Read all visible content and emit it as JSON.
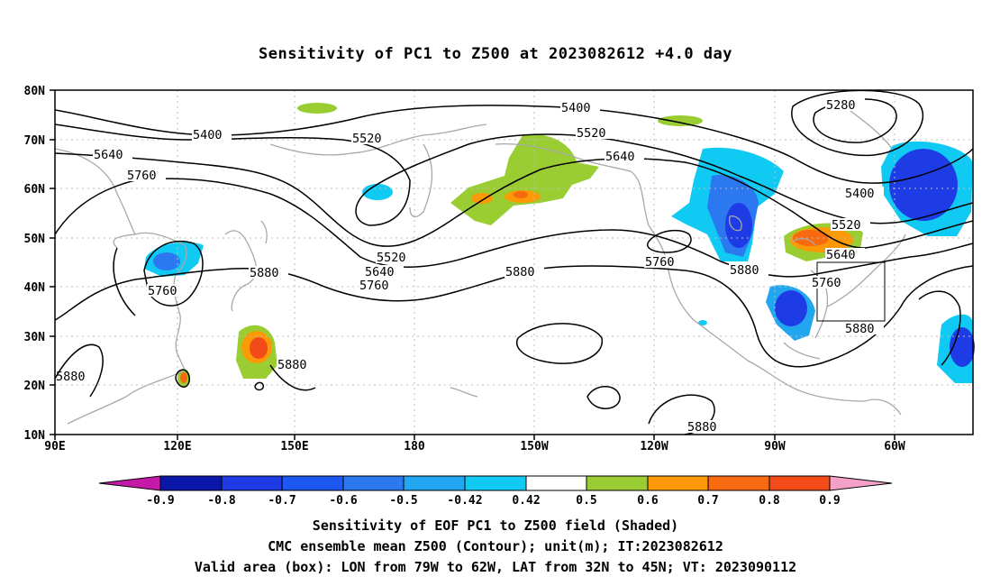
{
  "title": "Sensitivity of PC1 to Z500 at 2023082612 +4.0 day",
  "map": {
    "lon_labels": [
      "90E",
      "120E",
      "150E",
      "180",
      "150W",
      "120W",
      "90W",
      "60W"
    ],
    "lat_labels": [
      "80N",
      "70N",
      "60N",
      "50N",
      "40N",
      "30N",
      "20N",
      "10N"
    ],
    "contour_labels": [
      {
        "text": "5400"
      },
      {
        "text": "5520"
      },
      {
        "text": "5640"
      },
      {
        "text": "5760"
      },
      {
        "text": "5400"
      },
      {
        "text": "5520"
      },
      {
        "text": "5640"
      },
      {
        "text": "5520"
      },
      {
        "text": "5640"
      },
      {
        "text": "5760"
      },
      {
        "text": "5880"
      },
      {
        "text": "5760"
      },
      {
        "text": "5880"
      },
      {
        "text": "5880"
      },
      {
        "text": "5760"
      },
      {
        "text": "5880"
      },
      {
        "text": "5280"
      },
      {
        "text": "5400"
      },
      {
        "text": "5520"
      },
      {
        "text": "5640"
      },
      {
        "text": "5760"
      },
      {
        "text": "5880"
      },
      {
        "text": "5880"
      }
    ],
    "valid_box": {
      "lon_from": "79W",
      "lon_to": "62W",
      "lat_from": "32N",
      "lat_to": "45N"
    }
  },
  "colorbar": {
    "labels": [
      "-0.9",
      "-0.8",
      "-0.7",
      "-0.6",
      "-0.5",
      "-0.42",
      "0.42",
      "0.5",
      "0.6",
      "0.7",
      "0.8",
      "0.9"
    ],
    "colors": [
      "#c51aa8",
      "#0a16a8",
      "#1e3ce6",
      "#1d56f0",
      "#2c78f0",
      "#22a6f0",
      "#10caf4",
      "#ffffff",
      "#9acd32",
      "#fb9a06",
      "#f76a10",
      "#f24a18",
      "#f71808",
      "#f5a0c8"
    ]
  },
  "captions": {
    "line1": "Sensitivity of EOF PC1 to Z500 field (Shaded)",
    "line2": "CMC ensemble mean Z500 (Contour); unit(m); IT:2023082612",
    "line3": "Valid area (box): LON from 79W to 62W, LAT from 32N to 45N; VT: 2023090112"
  }
}
